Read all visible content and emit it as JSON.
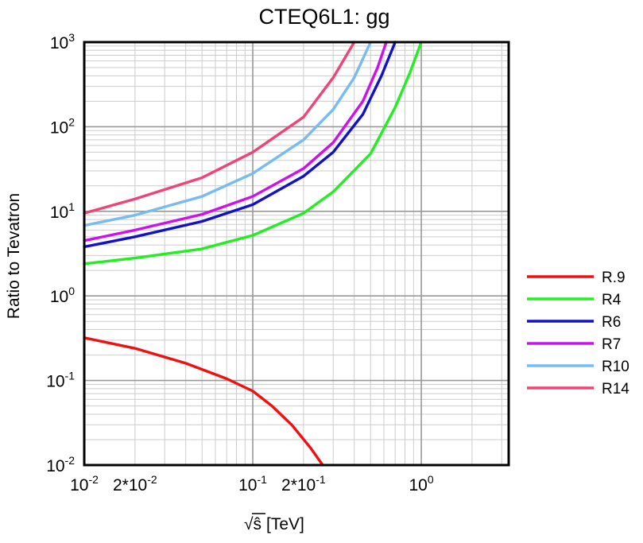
{
  "chart_data": {
    "type": "line",
    "title": "CTEQ6L1: gg",
    "xlabel_prefix": "√",
    "xlabel_var": "ŝ",
    "xlabel_unit": "[TeV]",
    "ylabel": "Ratio to Tevatron",
    "x_scale": "log",
    "y_scale": "log",
    "xlim": [
      0.01,
      3.3
    ],
    "ylim": [
      0.01,
      1000
    ],
    "grid": true,
    "legend_position": "right-outside",
    "x_ticks": [
      {
        "base": "10",
        "exp": "-2",
        "text": ""
      },
      {
        "base": "",
        "exp": "",
        "text": "2*10"
      },
      {
        "base": "10",
        "exp": "-1",
        "text": ""
      },
      {
        "base": "",
        "exp": "",
        "text": "2*10"
      },
      {
        "base": "10",
        "exp": "0",
        "text": ""
      }
    ],
    "x_tick_exps": [
      "-2",
      "-2",
      "-1",
      "-1",
      "0"
    ],
    "y_ticks": [
      {
        "base": "10",
        "exp": "-2"
      },
      {
        "base": "10",
        "exp": "-1"
      },
      {
        "base": "10",
        "exp": "0"
      },
      {
        "base": "10",
        "exp": "1"
      },
      {
        "base": "10",
        "exp": "2"
      },
      {
        "base": "10",
        "exp": "3"
      }
    ],
    "series": [
      {
        "name": "R.9",
        "color": "#ee1111",
        "x": [
          0.01,
          0.02,
          0.04,
          0.07,
          0.1,
          0.13,
          0.17,
          0.22,
          0.26
        ],
        "y": [
          0.32,
          0.24,
          0.16,
          0.105,
          0.075,
          0.05,
          0.03,
          0.016,
          0.01
        ]
      },
      {
        "name": "R4",
        "color": "#22ee22",
        "x": [
          0.01,
          0.02,
          0.05,
          0.1,
          0.2,
          0.3,
          0.5,
          0.7,
          0.85,
          1.0
        ],
        "y": [
          2.4,
          2.8,
          3.6,
          5.2,
          9.5,
          17,
          48,
          170,
          420,
          1000
        ]
      },
      {
        "name": "R6",
        "color": "#1111cc",
        "x": [
          0.01,
          0.02,
          0.05,
          0.1,
          0.2,
          0.3,
          0.45,
          0.58,
          0.7
        ],
        "y": [
          3.8,
          5.0,
          7.6,
          12,
          26,
          50,
          140,
          400,
          1000
        ]
      },
      {
        "name": "R7",
        "color": "#cc11ee",
        "x": [
          0.01,
          0.02,
          0.05,
          0.1,
          0.2,
          0.3,
          0.45,
          0.55,
          0.62
        ],
        "y": [
          4.5,
          6.0,
          9.2,
          15,
          32,
          65,
          200,
          500,
          1000
        ]
      },
      {
        "name": "R10",
        "color": "#77bbf5",
        "x": [
          0.01,
          0.02,
          0.05,
          0.1,
          0.2,
          0.3,
          0.4,
          0.5
        ],
        "y": [
          6.8,
          9.0,
          15,
          28,
          70,
          160,
          380,
          1000
        ]
      },
      {
        "name": "R14",
        "color": "#f04477",
        "x": [
          0.01,
          0.02,
          0.05,
          0.1,
          0.2,
          0.3,
          0.4
        ],
        "y": [
          9.5,
          14,
          25,
          50,
          130,
          380,
          1000
        ]
      }
    ]
  }
}
